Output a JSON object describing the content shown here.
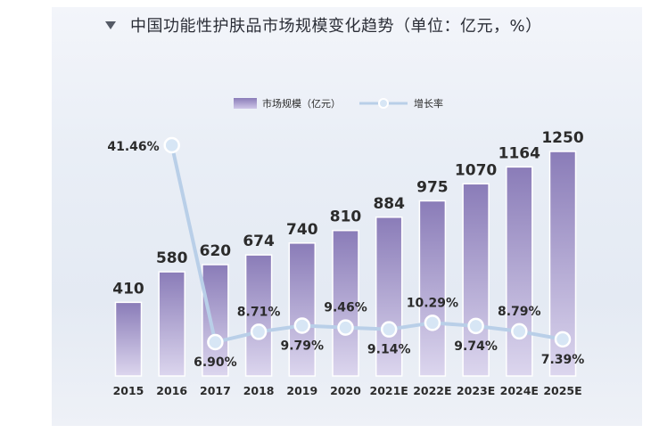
{
  "chart_data": {
    "type": "bar",
    "title": "中国功能性护肤品市场规模变化趋势（单位：亿元，%）",
    "categories": [
      "2015",
      "2016",
      "2017",
      "2018",
      "2019",
      "2020",
      "2021E",
      "2022E",
      "2023E",
      "2024E",
      "2025E"
    ],
    "series": [
      {
        "name": "市场规模（亿元）",
        "type": "bar",
        "values": [
          410,
          580,
          620,
          674,
          740,
          810,
          884,
          975,
          1070,
          1164,
          1250
        ],
        "labels": [
          "410",
          "580",
          "620",
          "674",
          "740",
          "810",
          "884",
          "975",
          "1070",
          "1164",
          "1250"
        ]
      },
      {
        "name": "增长率",
        "type": "line",
        "values": [
          null,
          41.46,
          6.9,
          8.71,
          9.79,
          9.46,
          9.14,
          10.29,
          9.74,
          8.79,
          7.39
        ],
        "labels": [
          "",
          "41.46%",
          "6.90%",
          "8.71%",
          "9.79%",
          "9.46%",
          "9.14%",
          "10.29%",
          "9.74%",
          "8.79%",
          "7.39%"
        ],
        "label_positions": [
          "",
          "left",
          "below",
          "above",
          "below",
          "above",
          "below",
          "above",
          "below",
          "above",
          "below"
        ]
      }
    ],
    "legend_position": "top-center",
    "grid": false,
    "colors": {
      "bar_top": "#8a7cb8",
      "bar_bottom": "#dcd6ee",
      "line": "#b9cfe8",
      "marker_fill": "#d7e6f5",
      "marker_stroke": "#ffffff",
      "label_text": "#2b2b2b"
    }
  }
}
